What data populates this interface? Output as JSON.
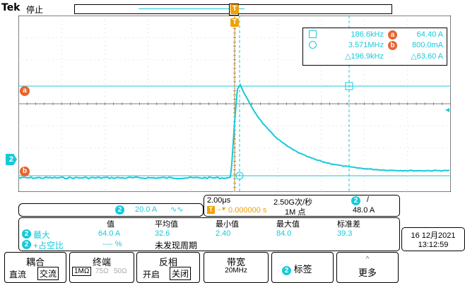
{
  "header": {
    "brand": "Tek",
    "status": "停止"
  },
  "trigger": {
    "position_marker": "T"
  },
  "markers": {
    "a": "a",
    "b": "b",
    "ch2": "2",
    "t_label": "T"
  },
  "cursor_readout": {
    "row1": {
      "time": "186.6kHz",
      "amp": "64.40 A",
      "marker": "a"
    },
    "row2": {
      "time": "3.571MHz",
      "amp": "800.0mA",
      "marker": "b"
    },
    "row3": {
      "time_delta": "△196.9kHz",
      "amp_delta": "△63.60 A"
    }
  },
  "channel_info": {
    "ch": "2",
    "scale": "20.0 A",
    "bw_icon": "∿∿"
  },
  "horizontal": {
    "timebase": "2.00μs",
    "sample_rate": "2.50G次/秒",
    "trigger_offset": "0.000000 s",
    "record_length": "1M 点",
    "trig_ch": "2",
    "trig_slope": "/",
    "trig_level": "48.0 A"
  },
  "measurements": {
    "headers": {
      "value": "值",
      "mean": "平均值",
      "min": "最小值",
      "max": "最大值",
      "std": "标准差"
    },
    "row1": {
      "ch": "2",
      "label": "最大",
      "value": "64.0 A",
      "mean": "32.6",
      "min": "2.40",
      "max": "84.0",
      "std": "39.3"
    },
    "row2": {
      "ch": "2",
      "label": "+占空比",
      "value": "---- %",
      "mean": "未发现周期"
    }
  },
  "datetime": {
    "date": "16 12月2021",
    "time": "13:12:59"
  },
  "softkeys": {
    "coupling": {
      "title": "耦合",
      "opt1": "直流",
      "opt2": "交流"
    },
    "termination": {
      "title": "终端",
      "opt1": "1MΩ",
      "opt2": "75Ω",
      "opt3": "50Ω"
    },
    "invert": {
      "title": "反相",
      "opt1": "开启",
      "opt2": "关闭"
    },
    "bandwidth": {
      "title": "带宽",
      "value": "20MHz"
    },
    "label": {
      "ch": "2",
      "title": "标签"
    },
    "more": {
      "title": "更多",
      "arrow": "^"
    }
  },
  "colors": {
    "trace": "#16c9d9",
    "cursor_marker": "#e8642f",
    "trigger": "#f0a000"
  }
}
